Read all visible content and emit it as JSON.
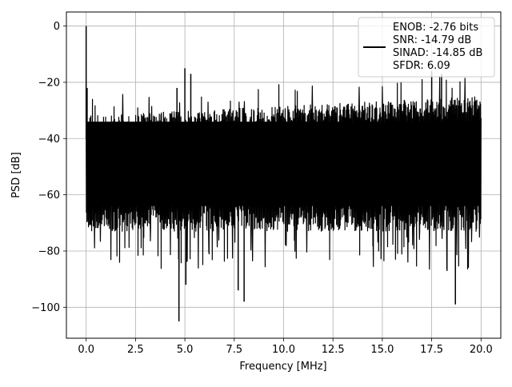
{
  "chart_data": {
    "type": "line",
    "title": "",
    "xlabel": "Frequency [MHz]",
    "ylabel": "PSD [dB]",
    "xlim": [
      -1.0,
      21.0
    ],
    "ylim": [
      -111,
      5
    ],
    "x_ticks": [
      0.0,
      2.5,
      5.0,
      7.5,
      10.0,
      12.5,
      15.0,
      17.5,
      20.0
    ],
    "x_tick_labels": [
      "0.0",
      "2.5",
      "5.0",
      "7.5",
      "10.0",
      "12.5",
      "15.0",
      "17.5",
      "20.0"
    ],
    "y_ticks": [
      0,
      -20,
      -40,
      -60,
      -80,
      -100
    ],
    "y_tick_labels": [
      "0",
      "−20",
      "−40",
      "−60",
      "−80",
      "−100"
    ],
    "grid": true,
    "legend_position": "top-right",
    "series": [
      {
        "name": "ENOB: -2.76 bits\nSNR: -14.79 dB\nSINAD: -14.85 dB\nSFDR: 6.09",
        "color": "#000000",
        "x_range": [
          0.0,
          20.0
        ],
        "noise_band_upper_db": -32,
        "noise_band_lower_db": -70,
        "noise_floor_trend": "upper envelope rises from about -32 dB to about -25 dB toward 20 MHz",
        "peaks": [
          {
            "x": 0.0,
            "y": 0
          },
          {
            "x": 0.05,
            "y": -22
          },
          {
            "x": 4.6,
            "y": -22
          },
          {
            "x": 5.0,
            "y": -15
          },
          {
            "x": 5.3,
            "y": -17
          },
          {
            "x": 17.5,
            "y": -16
          },
          {
            "x": 18.0,
            "y": -17
          }
        ],
        "troughs": [
          {
            "x": 4.7,
            "y": -105
          },
          {
            "x": 5.05,
            "y": -92
          },
          {
            "x": 7.7,
            "y": -94
          },
          {
            "x": 8.0,
            "y": -98
          },
          {
            "x": 18.7,
            "y": -99
          }
        ]
      }
    ],
    "legend_lines": [
      "ENOB: -2.76 bits",
      "SNR: -14.79 dB",
      "SINAD: -14.85 dB",
      "SFDR: 6.09"
    ]
  }
}
